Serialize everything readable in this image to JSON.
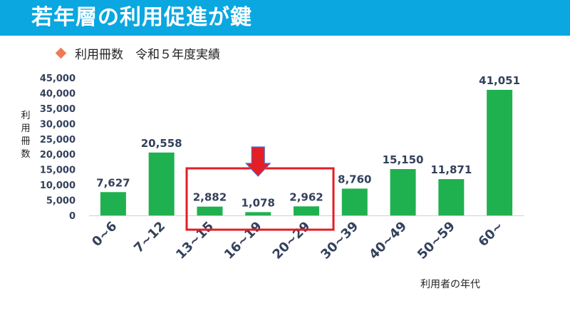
{
  "slide": {
    "title": "若年層の利用促進が鍵",
    "subtitle": "利用冊数　令和５年度実績"
  },
  "colors": {
    "header": "#0aa7e0",
    "bar": "#1fb14f",
    "highlight": "#e31e24",
    "marker": "#ee7a55",
    "text": "#33415c"
  },
  "chart_data": {
    "type": "bar",
    "categories": [
      "0~6",
      "7~12",
      "13~15",
      "16~19",
      "20~29",
      "30~39",
      "40~49",
      "50~59",
      "60~"
    ],
    "values": [
      7627,
      20558,
      2882,
      1078,
      2962,
      8760,
      15150,
      11871,
      41051
    ],
    "value_labels": [
      "7,627",
      "20,558",
      "2,882",
      "1,078",
      "2,962",
      "8,760",
      "15,150",
      "11,871",
      "41,051"
    ],
    "yticks": [
      0,
      5000,
      10000,
      15000,
      20000,
      25000,
      30000,
      35000,
      40000,
      45000
    ],
    "ytick_labels": [
      "0",
      "5,000",
      "10,000",
      "15,000",
      "20,000",
      "25,000",
      "30,000",
      "35,000",
      "40,000",
      "45,000"
    ],
    "ylim": [
      0,
      45000
    ],
    "xlabel": "利用者の年代",
    "ylabel": "利用冊数",
    "title": "",
    "grid": false,
    "highlighted_categories": [
      "13~15",
      "16~19",
      "20~29"
    ]
  }
}
